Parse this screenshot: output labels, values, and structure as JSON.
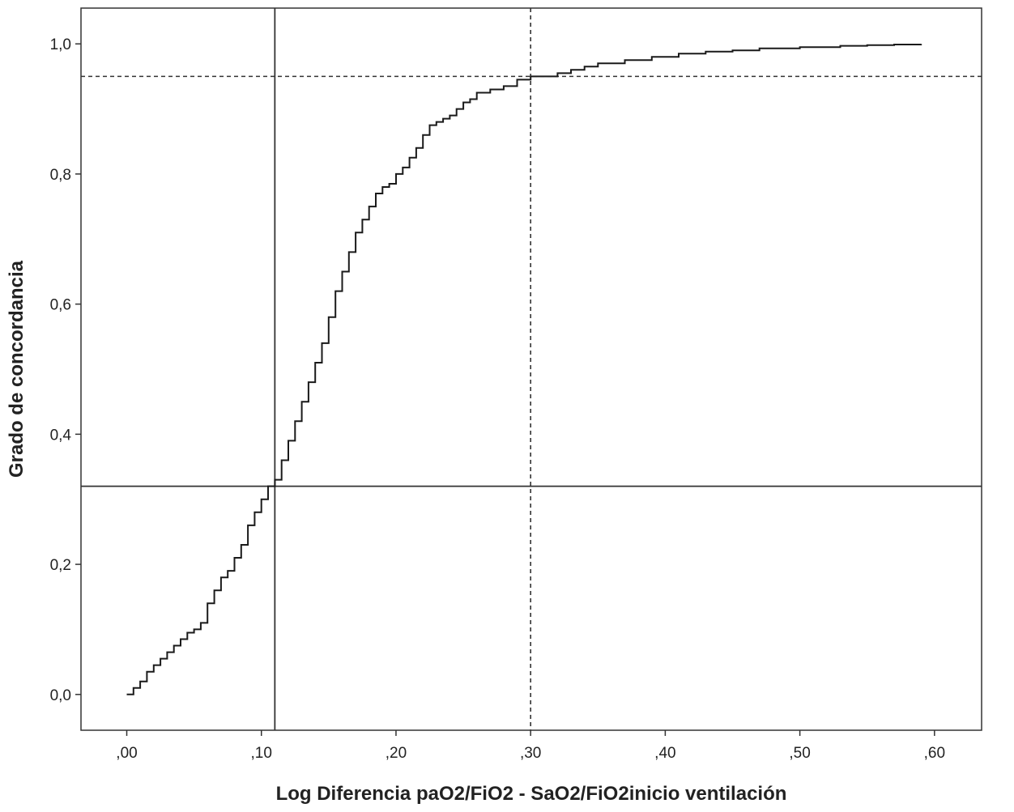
{
  "chart_data": {
    "type": "line",
    "title": "",
    "xlabel": "Log Diferencia paO2/FiO2 - SaO2/FiO2inicio ventilación",
    "ylabel": "Grado de concordancia",
    "xlim": [
      -0.034,
      0.635
    ],
    "ylim": [
      -0.055,
      1.055
    ],
    "x_ticks": [
      0.0,
      0.1,
      0.2,
      0.3,
      0.4,
      0.5,
      0.6
    ],
    "x_tick_labels": [
      ",00",
      ",10",
      ",20",
      ",30",
      ",40",
      ",50",
      ",60"
    ],
    "y_ticks": [
      0.0,
      0.2,
      0.4,
      0.6,
      0.8,
      1.0
    ],
    "y_tick_labels": [
      "0,0",
      "0,2",
      "0,4",
      "0,6",
      "0,8",
      "1,0"
    ],
    "grid": false,
    "legend": "none",
    "line_color": "#1a1a1a",
    "series": [
      {
        "x": [
          0.0,
          0.005,
          0.01,
          0.015,
          0.02,
          0.025,
          0.03,
          0.035,
          0.04,
          0.045,
          0.05,
          0.055,
          0.06,
          0.065,
          0.07,
          0.075,
          0.08,
          0.085,
          0.09,
          0.095,
          0.1,
          0.105,
          0.11,
          0.115,
          0.12,
          0.125,
          0.13,
          0.135,
          0.14,
          0.145,
          0.15,
          0.155,
          0.16,
          0.165,
          0.17,
          0.175,
          0.18,
          0.185,
          0.19,
          0.195,
          0.2,
          0.205,
          0.21,
          0.215,
          0.22,
          0.225,
          0.23,
          0.235,
          0.24,
          0.245,
          0.25,
          0.255,
          0.26,
          0.27,
          0.28,
          0.29,
          0.3,
          0.31,
          0.32,
          0.33,
          0.34,
          0.35,
          0.37,
          0.39,
          0.41,
          0.43,
          0.45,
          0.47,
          0.5,
          0.53,
          0.55,
          0.57,
          0.59
        ],
        "y": [
          0.0,
          0.01,
          0.02,
          0.035,
          0.045,
          0.055,
          0.065,
          0.075,
          0.085,
          0.095,
          0.1,
          0.11,
          0.14,
          0.16,
          0.18,
          0.19,
          0.21,
          0.23,
          0.26,
          0.28,
          0.3,
          0.32,
          0.33,
          0.36,
          0.39,
          0.42,
          0.45,
          0.48,
          0.51,
          0.54,
          0.58,
          0.62,
          0.65,
          0.68,
          0.71,
          0.73,
          0.75,
          0.77,
          0.78,
          0.785,
          0.8,
          0.81,
          0.825,
          0.84,
          0.86,
          0.875,
          0.88,
          0.885,
          0.89,
          0.9,
          0.91,
          0.915,
          0.925,
          0.93,
          0.935,
          0.945,
          0.95,
          0.95,
          0.955,
          0.96,
          0.965,
          0.97,
          0.975,
          0.98,
          0.985,
          0.988,
          0.99,
          0.993,
          0.995,
          0.997,
          0.998,
          0.999,
          1.0
        ]
      }
    ],
    "reference_lines": [
      {
        "orientation": "vertical",
        "value": 0.11,
        "style": "solid"
      },
      {
        "orientation": "horizontal",
        "value": 0.32,
        "style": "solid"
      },
      {
        "orientation": "vertical",
        "value": 0.3,
        "style": "dashed"
      },
      {
        "orientation": "horizontal",
        "value": 0.95,
        "style": "dashed"
      }
    ]
  }
}
